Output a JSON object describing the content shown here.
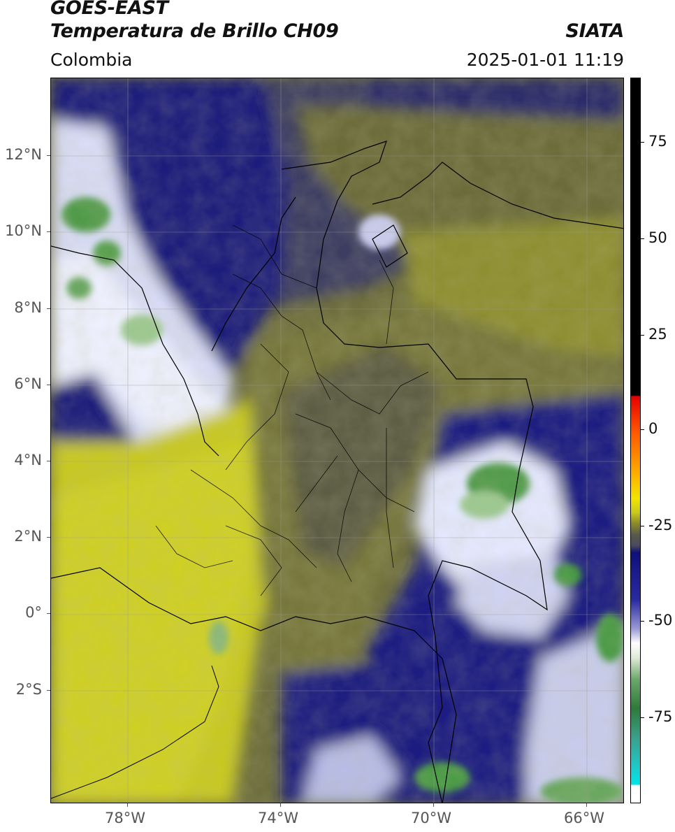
{
  "header": {
    "satellite": "GOES-EAST",
    "product": "Temperatura de Brillo CH09",
    "region": "Colombia",
    "source": "SIATA",
    "datetime": "2025-01-01 11:19"
  },
  "map": {
    "lon_range": [
      -80,
      -65
    ],
    "lat_range": [
      -5,
      14
    ],
    "lon_ticks": [
      "78°W",
      "74°W",
      "70°W",
      "66°W"
    ],
    "lat_ticks": [
      "12°N",
      "10°N",
      "8°N",
      "6°N",
      "4°N",
      "2°N",
      "0°",
      "2°S"
    ],
    "gridlines": true,
    "country_borders": true,
    "department_borders": true,
    "colors": {
      "warm_dry": "#c4c421",
      "olive": "#7c7c3a",
      "gray": "#5a5a5a",
      "cold_navy": "#1a1a7a",
      "cloud_white": "#eef0ff",
      "deep_convection_green": "#4a9a45"
    }
  },
  "colorbar": {
    "ticks": [
      "75",
      "50",
      "25",
      "0",
      "-25",
      "-50",
      "-75"
    ],
    "range": [
      -95,
      90
    ],
    "colors": {
      "black": "#000000",
      "red": "#e60000",
      "orange": "#ff8c00",
      "yellow": "#e6e600",
      "olive": "#8a8a2a",
      "gray": "#555555",
      "navy": "#10107a",
      "white": "#ffffff",
      "green": "#3a8a3a",
      "cyan": "#00e0e0"
    }
  }
}
